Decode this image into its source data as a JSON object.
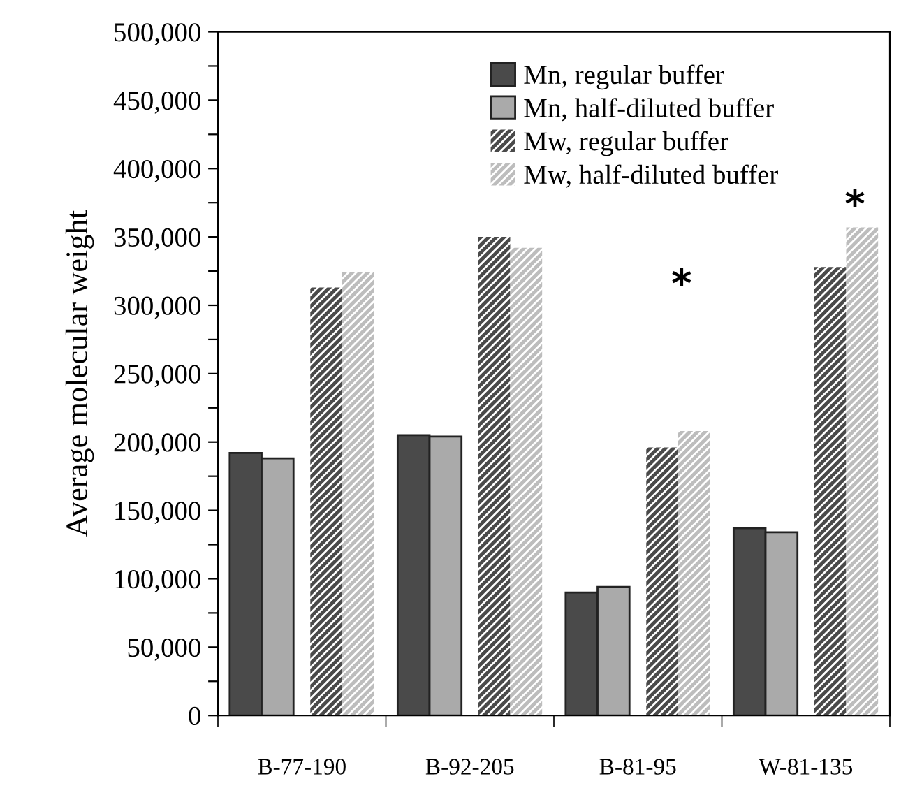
{
  "chart_data": {
    "type": "bar",
    "ylabel": "Average molecular weight",
    "categories": [
      "B-77-190",
      "B-92-205",
      "B-81-95",
      "W-81-135"
    ],
    "series": [
      {
        "name": "Mn, regular buffer",
        "color": "#4a4a4a",
        "values": [
          192000,
          205000,
          90000,
          137000
        ]
      },
      {
        "name": "Mn, half-diluted buffer",
        "color": "#aaaaaa",
        "values": [
          188000,
          204000,
          94000,
          134000
        ]
      },
      {
        "name": "Mw, regular buffer",
        "color": "#4a4a4a",
        "values": [
          313000,
          350000,
          196000,
          328000
        ]
      },
      {
        "name": "Mw, half-diluted buffer",
        "color": "#bdbdbd",
        "values": [
          324000,
          342000,
          208000,
          357000
        ]
      }
    ],
    "ylim": [
      0,
      500000
    ],
    "yticks": [
      {
        "value": 0,
        "label": "0"
      },
      {
        "value": 25000,
        "label": null
      },
      {
        "value": 50000,
        "label": "50,000"
      },
      {
        "value": 75000,
        "label": null
      },
      {
        "value": 100000,
        "label": "100,000"
      },
      {
        "value": 125000,
        "label": null
      },
      {
        "value": 150000,
        "label": "150,000"
      },
      {
        "value": 175000,
        "label": null
      },
      {
        "value": 200000,
        "label": "200,000"
      },
      {
        "value": 225000,
        "label": null
      },
      {
        "value": 250000,
        "label": "250,000"
      },
      {
        "value": 275000,
        "label": null
      },
      {
        "value": 300000,
        "label": "300,000"
      },
      {
        "value": 325000,
        "label": null
      },
      {
        "value": 350000,
        "label": "350,000"
      },
      {
        "value": 375000,
        "label": null
      },
      {
        "value": 400000,
        "label": "400,000"
      },
      {
        "value": 425000,
        "label": null
      },
      {
        "value": 450000,
        "label": "450,000"
      },
      {
        "value": 475000,
        "label": null
      },
      {
        "value": 500000,
        "label": "500,000"
      }
    ],
    "annotations": [
      "*",
      "*"
    ],
    "grid": false,
    "legend": "top"
  }
}
